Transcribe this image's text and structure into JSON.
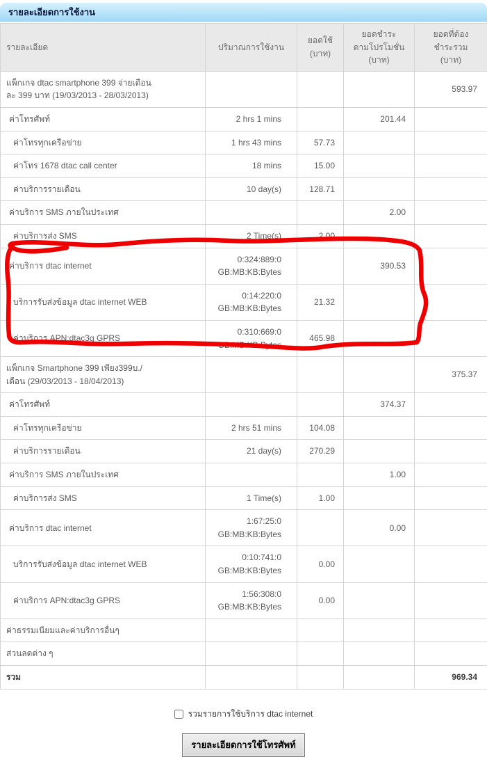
{
  "title": "รายละเอียดการใช้งาน",
  "colors": {
    "title_bar_top": "#d6f1fe",
    "title_bar_bottom": "#a2d8f6",
    "title_text": "#0a1540",
    "header_bg": "#e9e9e9",
    "border": "#d4d4d4",
    "body_text": "#5a5a5c",
    "annotation_red": "#ee0000"
  },
  "table": {
    "headers": [
      "รายละเอียด",
      "ปริมาณการใช้งาน",
      "ยอดใช้\n(บาท)",
      "ยอดชำระ\nตามโปรโมชั่น\n(บาท)",
      "ยอดที่ต้อง\nชำระรวม\n(บาท)"
    ],
    "rows": [
      {
        "label": "แพ็กเกจ dtac smartphone 399 จ่ายเดือน\nละ 399 บาท (19/03/2013 - 28/03/2013)",
        "indent": 0,
        "usage": "",
        "used": "",
        "promo": "",
        "total": "593.97",
        "bold": false
      },
      {
        "label": "ค่าโทรศัพท์",
        "indent": 1,
        "usage": "2 hrs 1 mins",
        "used": "",
        "promo": "201.44",
        "total": "",
        "bold": false
      },
      {
        "label": "ค่าโทรทุกเครือข่าย",
        "indent": 2,
        "usage": "1 hrs 43 mins",
        "used": "57.73",
        "promo": "",
        "total": "",
        "bold": false
      },
      {
        "label": "ค่าโทร 1678 dtac call center",
        "indent": 2,
        "usage": "18 mins",
        "used": "15.00",
        "promo": "",
        "total": "",
        "bold": false
      },
      {
        "label": "ค่าบริการรายเดือน",
        "indent": 2,
        "usage": "10 day(s)",
        "used": "128.71",
        "promo": "",
        "total": "",
        "bold": false
      },
      {
        "label": "ค่าบริการ SMS ภายในประเทศ",
        "indent": 1,
        "usage": "",
        "used": "",
        "promo": "2.00",
        "total": "",
        "bold": false
      },
      {
        "label": "ค่าบริการส่ง SMS",
        "indent": 2,
        "usage": "2 Time(s)",
        "used": "2.00",
        "promo": "",
        "total": "",
        "bold": false
      },
      {
        "label": "ค่าบริการ dtac internet",
        "indent": 1,
        "usage": "0:324:889:0\nGB:MB:KB:Bytes",
        "used": "",
        "promo": "390.53",
        "total": "",
        "bold": false
      },
      {
        "label": "บริการรับส่งข้อมูล dtac internet WEB",
        "indent": 2,
        "usage": "0:14:220:0\nGB:MB:KB:Bytes",
        "used": "21.32",
        "promo": "",
        "total": "",
        "bold": false
      },
      {
        "label": "ค่าบริการ APN:dtac3g GPRS",
        "indent": 2,
        "usage": "0:310:669:0\nGB:MB:KB:Bytes",
        "used": "465.98",
        "promo": "",
        "total": "",
        "bold": false
      },
      {
        "label": "แพ็กเกจ Smartphone 399 เพียง399บ./\nเดือน (29/03/2013 - 18/04/2013)",
        "indent": 0,
        "usage": "",
        "used": "",
        "promo": "",
        "total": "375.37",
        "bold": false
      },
      {
        "label": "ค่าโทรศัพท์",
        "indent": 1,
        "usage": "",
        "used": "",
        "promo": "374.37",
        "total": "",
        "bold": false
      },
      {
        "label": "ค่าโทรทุกเครือข่าย",
        "indent": 2,
        "usage": "2 hrs 51 mins",
        "used": "104.08",
        "promo": "",
        "total": "",
        "bold": false
      },
      {
        "label": "ค่าบริการรายเดือน",
        "indent": 2,
        "usage": "21 day(s)",
        "used": "270.29",
        "promo": "",
        "total": "",
        "bold": false
      },
      {
        "label": "ค่าบริการ SMS ภายในประเทศ",
        "indent": 1,
        "usage": "",
        "used": "",
        "promo": "1.00",
        "total": "",
        "bold": false
      },
      {
        "label": "ค่าบริการส่ง SMS",
        "indent": 2,
        "usage": "1 Time(s)",
        "used": "1.00",
        "promo": "",
        "total": "",
        "bold": false
      },
      {
        "label": "ค่าบริการ dtac internet",
        "indent": 1,
        "usage": "1:67:25:0\nGB:MB:KB:Bytes",
        "used": "",
        "promo": "0.00",
        "total": "",
        "bold": false
      },
      {
        "label": "บริการรับส่งข้อมูล dtac internet WEB",
        "indent": 2,
        "usage": "0:10:741:0\nGB:MB:KB:Bytes",
        "used": "0.00",
        "promo": "",
        "total": "",
        "bold": false
      },
      {
        "label": "ค่าบริการ APN:dtac3g GPRS",
        "indent": 2,
        "usage": "1:56:308:0\nGB:MB:KB:Bytes",
        "used": "0.00",
        "promo": "",
        "total": "",
        "bold": false
      },
      {
        "label": "ค่าธรรมเนียมและค่าบริการอื่นๆ",
        "indent": 0,
        "usage": "",
        "used": "",
        "promo": "",
        "total": "",
        "bold": false
      },
      {
        "label": "ส่วนลดต่าง ๆ",
        "indent": 0,
        "usage": "",
        "used": "",
        "promo": "",
        "total": "",
        "bold": false
      },
      {
        "label": "รวม",
        "indent": 0,
        "usage": "",
        "used": "",
        "promo": "",
        "total": "969.34",
        "bold": true
      }
    ]
  },
  "annotation": {
    "description": "hand-drawn red loop circling the three dtac internet rows of the first package section",
    "color": "#ee0000"
  },
  "footer": {
    "checkbox_label": "รวมรายการใช้บริการ dtac internet",
    "checkbox_checked": false,
    "button_label": "รายละเอียดการใช้โทรศัพท์"
  }
}
